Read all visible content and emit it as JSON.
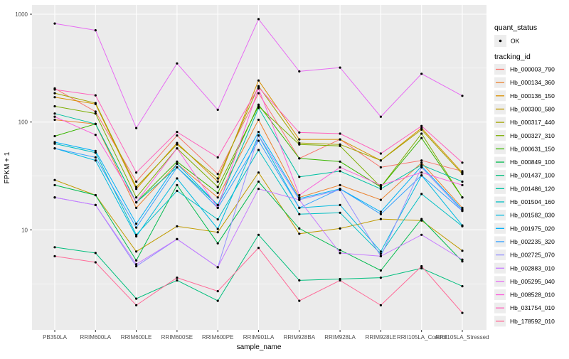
{
  "axes": {
    "xlabel": "sample_name",
    "ylabel": "FPKM + 1",
    "yticks": [
      "1000",
      "100",
      "10"
    ]
  },
  "legend": {
    "quant_title": "quant_status",
    "quant_ok_label": "OK",
    "tracking_title": "tracking_id"
  },
  "colors": {
    "panel_bg": "#EBEBEB",
    "grid": "#FFFFFF",
    "key_bg": "#EDEDED",
    "tick_text": "#4D4D4D",
    "point": "#000000"
  },
  "chart_data": {
    "type": "line",
    "title": "",
    "xlabel": "sample_name",
    "ylabel": "FPKM + 1",
    "y_scale": "log10",
    "ylim": [
      1.1,
      1100
    ],
    "grid": true,
    "legend_position": "right",
    "point_marker": "black dot on every value",
    "categories": [
      "PB350LA",
      "RRIM600LA",
      "RRIM600LE",
      "RRIM600SE",
      "RRIM600PE",
      "RRIM901LA",
      "RRIM928BA",
      "RRIM928LA",
      "RRIM928LE",
      "RRII105LA_Control",
      "RRII105LA_Stressed"
    ],
    "series": [
      {
        "name": "Hb_000003_790",
        "color": "#F8766D",
        "values": [
          205,
          125,
          28,
          75,
          33,
          185,
          46,
          69,
          38,
          44,
          35
        ]
      },
      {
        "name": "Hb_000134_360",
        "color": "#EA8331",
        "values": [
          105,
          96,
          16,
          41,
          20,
          105,
          20,
          26,
          19,
          42,
          16
        ]
      },
      {
        "name": "Hb_000136_150",
        "color": "#D89000",
        "values": [
          170,
          147,
          24,
          64,
          28,
          243,
          69,
          69,
          44,
          88,
          34
        ]
      },
      {
        "name": "Hb_000300_580",
        "color": "#C09B00",
        "values": [
          29,
          21,
          6.3,
          10.8,
          9.5,
          34,
          9.2,
          10.3,
          12.6,
          12.2,
          6.4
        ]
      },
      {
        "name": "Hb_000317_440",
        "color": "#A3A500",
        "values": [
          185,
          150,
          25,
          62,
          30,
          215,
          64,
          62,
          44,
          85,
          33
        ]
      },
      {
        "name": "Hb_000327_310",
        "color": "#7CAE00",
        "values": [
          140,
          120,
          20,
          57,
          25,
          140,
          62,
          60,
          25,
          78,
          20
        ]
      },
      {
        "name": "Hb_000631_150",
        "color": "#39B600",
        "values": [
          74,
          96,
          18,
          43,
          22,
          145,
          46,
          43,
          25,
          71,
          20
        ]
      },
      {
        "name": "Hb_000849_100",
        "color": "#00BB4E",
        "values": [
          26,
          21,
          5.2,
          26,
          7.5,
          28,
          10.3,
          6.5,
          4.2,
          12.6,
          5.1
        ]
      },
      {
        "name": "Hb_001437_100",
        "color": "#00BF7D",
        "values": [
          6.9,
          6.1,
          2.3,
          3.4,
          2.2,
          9.0,
          3.4,
          3.5,
          3.6,
          4.4,
          3.0
        ]
      },
      {
        "name": "Hb_001486_120",
        "color": "#00C1A3",
        "values": [
          120,
          96,
          18,
          38,
          17,
          135,
          31,
          35,
          24,
          40,
          28
        ]
      },
      {
        "name": "Hb_001504_160",
        "color": "#00BFC4",
        "values": [
          63,
          52,
          9,
          23,
          12.5,
          55,
          14,
          14.4,
          6.0,
          21.5,
          10.8
        ]
      },
      {
        "name": "Hb_001582_030",
        "color": "#00BAE0",
        "values": [
          57,
          44,
          8.7,
          30,
          10.2,
          75,
          16,
          17,
          6.3,
          32,
          11
        ]
      },
      {
        "name": "Hb_001975_020",
        "color": "#00B0F6",
        "values": [
          65,
          54,
          11.4,
          41,
          17,
          81,
          19.5,
          24,
          14.7,
          39,
          15.5
        ]
      },
      {
        "name": "Hb_002235_320",
        "color": "#35A2FF",
        "values": [
          57,
          47,
          10.5,
          38,
          16,
          67,
          16,
          24,
          14,
          32,
          15
        ]
      },
      {
        "name": "Hb_002725_070",
        "color": "#9590FF",
        "values": [
          20,
          17,
          4.6,
          8.2,
          4.5,
          75,
          19,
          23.5,
          5.7,
          38,
          15
        ]
      },
      {
        "name": "Hb_002883_010",
        "color": "#C77CFF",
        "values": [
          20,
          17,
          4.8,
          8.2,
          4.5,
          24,
          19,
          6.1,
          5.7,
          9.0,
          5.3
        ]
      },
      {
        "name": "Hb_005295_040",
        "color": "#E76BF3",
        "values": [
          820,
          710,
          88,
          350,
          130,
          900,
          295,
          320,
          112,
          280,
          175
        ]
      },
      {
        "name": "Hb_008528_010",
        "color": "#FA62DB",
        "values": [
          112,
          76,
          18,
          57,
          16,
          205,
          21,
          38,
          26,
          34,
          26
        ]
      },
      {
        "name": "Hb_031754_010",
        "color": "#FF62BC",
        "values": [
          200,
          177,
          34,
          81,
          47,
          210,
          80,
          78,
          51,
          92,
          42
        ]
      },
      {
        "name": "Hb_178592_010",
        "color": "#FF6A98",
        "values": [
          5.7,
          5.0,
          2.0,
          3.6,
          2.7,
          6.8,
          2.2,
          3.4,
          2.0,
          4.6,
          1.7
        ]
      }
    ]
  }
}
